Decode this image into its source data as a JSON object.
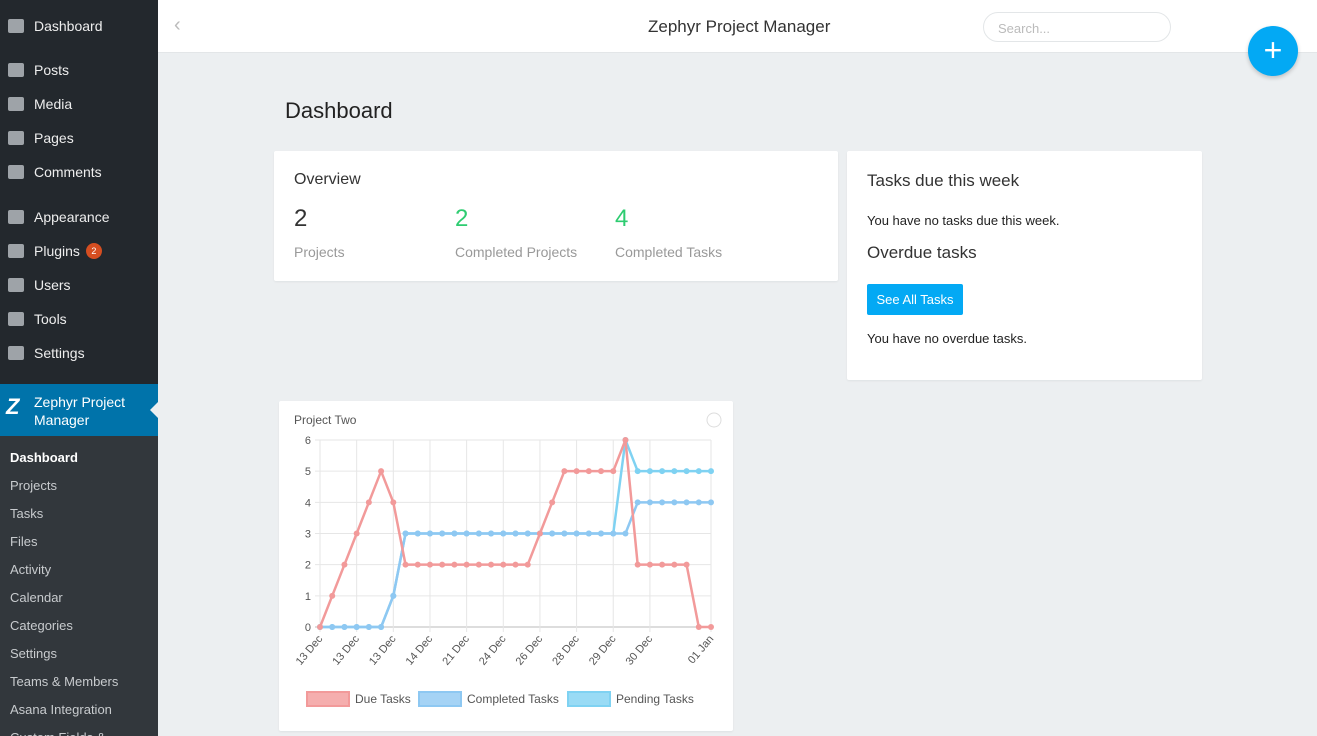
{
  "sidebar": {
    "top": "Dashboard",
    "menu": [
      {
        "label": "Posts"
      },
      {
        "label": "Media"
      },
      {
        "label": "Pages"
      },
      {
        "label": "Comments"
      },
      {
        "label": "Appearance"
      },
      {
        "label": "Plugins",
        "badge": "2"
      },
      {
        "label": "Users"
      },
      {
        "label": "Tools"
      },
      {
        "label": "Settings"
      }
    ],
    "active": "Zephyr Project Manager",
    "submenu": [
      "Dashboard",
      "Projects",
      "Tasks",
      "Files",
      "Activity",
      "Calendar",
      "Categories",
      "Settings",
      "Teams & Members",
      "Asana Integration",
      "Custom Fields &"
    ]
  },
  "topbar": {
    "title": "Zephyr Project Manager",
    "search_placeholder": "Search..."
  },
  "page": {
    "title": "Dashboard"
  },
  "overview": {
    "title": "Overview",
    "stats": [
      {
        "value": "2",
        "label": "Projects"
      },
      {
        "value": "2",
        "label": "Completed Projects"
      },
      {
        "value": "4",
        "label": "Completed Tasks"
      }
    ]
  },
  "tasks": {
    "title": "Tasks due this week",
    "due_text": "You have no tasks due this week.",
    "overdue_title": "Overdue tasks",
    "button": "See All Tasks",
    "overdue_text": "You have no overdue tasks."
  },
  "chart_data": {
    "type": "line",
    "title": "Project Two",
    "categories": [
      "13 Dec",
      null,
      null,
      "13 Dec",
      null,
      null,
      "13 Dec",
      null,
      null,
      "14 Dec",
      null,
      null,
      "21 Dec",
      null,
      null,
      "24 Dec",
      null,
      null,
      "26 Dec",
      null,
      null,
      "28 Dec",
      null,
      null,
      "29 Dec",
      null,
      null,
      "30 Dec",
      null,
      null,
      null,
      null,
      "01 Jan"
    ],
    "series": [
      {
        "name": "Due Tasks",
        "color": "#f29a9a",
        "values": [
          0,
          1,
          2,
          3,
          4,
          5,
          4,
          2,
          2,
          2,
          2,
          2,
          2,
          2,
          2,
          2,
          2,
          2,
          3,
          4,
          5,
          5,
          5,
          5,
          5,
          6,
          2,
          2,
          2,
          2,
          2,
          0,
          0
        ]
      },
      {
        "name": "Completed Tasks",
        "color": "#8ec8f2",
        "values": [
          0,
          0,
          0,
          0,
          0,
          0,
          1,
          3,
          3,
          3,
          3,
          3,
          3,
          3,
          3,
          3,
          3,
          3,
          3,
          3,
          3,
          3,
          3,
          3,
          3,
          3,
          4,
          4,
          4,
          4,
          4,
          4,
          4
        ]
      },
      {
        "name": "Pending Tasks",
        "color": "#7fd2f2",
        "values": [
          0,
          0,
          0,
          0,
          0,
          0,
          1,
          3,
          3,
          3,
          3,
          3,
          3,
          3,
          3,
          3,
          3,
          3,
          3,
          3,
          3,
          3,
          3,
          3,
          3,
          6,
          5,
          5,
          5,
          5,
          5,
          5,
          5
        ]
      }
    ],
    "ylim": [
      0,
      6
    ],
    "yticks": [
      0,
      1,
      2,
      3,
      4,
      5,
      6
    ],
    "grid": true,
    "legend": "bottom"
  }
}
